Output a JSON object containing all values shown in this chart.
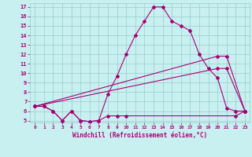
{
  "xlabel": "Windchill (Refroidissement éolien,°C)",
  "bg_color": "#c8f0f0",
  "line_color": "#aa0077",
  "grid_color": "#99cccc",
  "xlim": [
    -0.5,
    23.5
  ],
  "ylim": [
    4.8,
    17.4
  ],
  "xticks": [
    0,
    1,
    2,
    3,
    4,
    5,
    6,
    7,
    8,
    9,
    10,
    11,
    12,
    13,
    14,
    15,
    16,
    17,
    18,
    19,
    20,
    21,
    22,
    23
  ],
  "yticks": [
    5,
    6,
    7,
    8,
    9,
    10,
    11,
    12,
    13,
    14,
    15,
    16,
    17
  ],
  "line1_x": [
    0,
    1,
    2,
    3,
    4,
    5,
    6,
    7,
    8,
    9,
    10,
    11,
    12,
    13,
    14,
    15,
    16,
    17,
    18,
    19,
    20,
    21,
    22,
    23
  ],
  "line1_y": [
    6.5,
    6.5,
    6.0,
    5.0,
    6.0,
    5.0,
    4.9,
    5.0,
    7.8,
    9.7,
    12.0,
    14.0,
    15.5,
    17.0,
    17.0,
    15.5,
    15.0,
    14.5,
    12.0,
    10.5,
    9.5,
    6.3,
    6.0,
    6.0
  ],
  "line2_x": [
    0,
    20,
    21,
    23
  ],
  "line2_y": [
    6.5,
    11.8,
    11.8,
    6.0
  ],
  "line3_x": [
    0,
    20,
    21,
    23
  ],
  "line3_y": [
    6.5,
    10.5,
    10.5,
    6.0
  ],
  "line4_x": [
    0,
    1,
    2,
    3,
    4,
    5,
    6,
    7,
    8,
    9,
    10,
    22,
    23
  ],
  "line4_y": [
    6.5,
    6.5,
    6.0,
    5.0,
    6.0,
    5.0,
    4.9,
    5.0,
    5.5,
    5.5,
    5.5,
    5.5,
    6.0
  ]
}
